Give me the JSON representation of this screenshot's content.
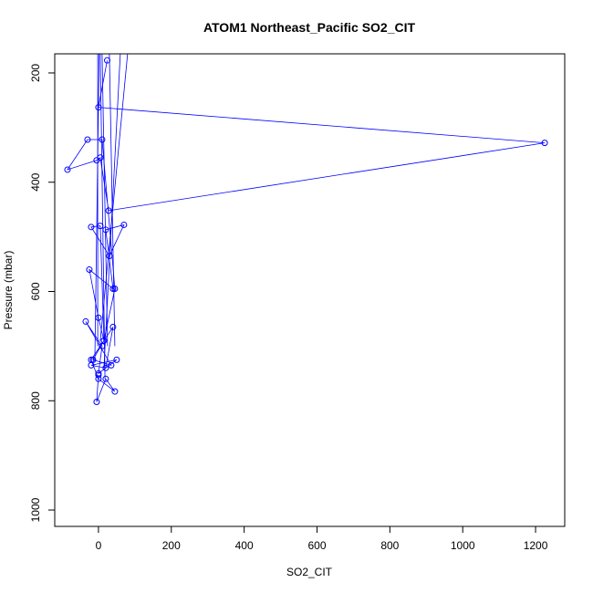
{
  "chart_data": {
    "type": "line",
    "title": "ATOM1 Northeast_Pacific SO2_CIT",
    "xlabel": "SO2_CIT",
    "ylabel": "Pressure (mbar)",
    "xlim": [
      -120,
      1280
    ],
    "ylim": [
      1030,
      165
    ],
    "y_reversed": true,
    "x_ticks": [
      0,
      200,
      400,
      600,
      800,
      1000,
      1200
    ],
    "y_ticks": [
      200,
      400,
      600,
      800,
      1000
    ],
    "grid": false,
    "legend": "none",
    "series": [
      {
        "color": "#0000ff",
        "marker": "open-circle",
        "x": [
          24,
          0,
          1225,
          28,
          5,
          -5,
          -85,
          -30,
          10,
          45,
          15,
          5,
          -20,
          30,
          70,
          20,
          40,
          -25,
          0,
          15,
          -15,
          35,
          -35,
          10,
          0,
          50,
          -20,
          20,
          40,
          -20,
          0,
          45,
          20,
          -5,
          0
        ],
        "y": [
          177,
          263,
          328,
          452,
          355,
          360,
          377,
          322,
          322,
          595,
          690,
          480,
          482,
          535,
          478,
          487,
          595,
          560,
          648,
          690,
          725,
          735,
          655,
          700,
          750,
          725,
          735,
          740,
          665,
          725,
          760,
          783,
          760,
          802,
          753
        ]
      }
    ],
    "extra_segments": [
      {
        "x": [
          -2,
          -2
        ],
        "y": [
          165,
          700
        ]
      },
      {
        "x": [
          2,
          -10
        ],
        "y": [
          165,
          730
        ]
      },
      {
        "x": [
          5,
          18
        ],
        "y": [
          165,
          760
        ]
      },
      {
        "x": [
          10,
          25
        ],
        "y": [
          165,
          700
        ]
      },
      {
        "x": [
          30,
          45
        ],
        "y": [
          165,
          700
        ]
      },
      {
        "x": [
          60,
          15
        ],
        "y": [
          165,
          740
        ]
      },
      {
        "x": [
          80,
          5
        ],
        "y": [
          165,
          690
        ]
      }
    ]
  }
}
